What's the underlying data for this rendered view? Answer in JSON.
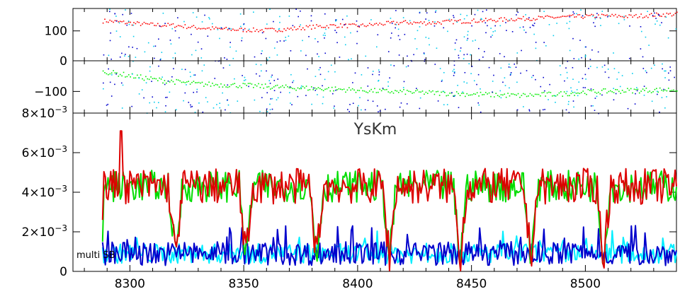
{
  "chart_data": [
    {
      "type": "scatter",
      "panel": "top",
      "ylim": [
        0,
        175
      ],
      "xlim": [
        8275,
        8540
      ],
      "yticks": [
        0,
        100
      ],
      "ytick_labels": [
        "0",
        "100"
      ],
      "series": [
        {
          "color": "#ff0000",
          "style": "dots",
          "x": [
            8290,
            8300,
            8310,
            8320,
            8330,
            8340,
            8350,
            8360,
            8370,
            8380,
            8390,
            8400,
            8410,
            8420,
            8430,
            8440,
            8450,
            8460,
            8470,
            8480,
            8490,
            8500,
            8510,
            8520,
            8530,
            8540
          ],
          "y": [
            135,
            128,
            122,
            120,
            112,
            108,
            105,
            104,
            108,
            115,
            120,
            118,
            125,
            130,
            128,
            132,
            135,
            138,
            142,
            145,
            148,
            150,
            152,
            150,
            155,
            158
          ]
        },
        {
          "color": "#00ccee",
          "style": "scattered-dots",
          "range": [
            0,
            175
          ]
        },
        {
          "color": "#0000cc",
          "style": "scattered-dots",
          "range": [
            0,
            175
          ]
        }
      ]
    },
    {
      "type": "scatter",
      "panel": "middle",
      "ylim": [
        -160,
        -15
      ],
      "xlim": [
        8275,
        8540
      ],
      "yticks": [
        -100
      ],
      "ytick_labels": [
        "−100"
      ],
      "series": [
        {
          "color": "#00ee00",
          "style": "dots",
          "x": [
            8290,
            8300,
            8310,
            8320,
            8330,
            8340,
            8350,
            8360,
            8370,
            8380,
            8390,
            8400,
            8410,
            8420,
            8430,
            8440,
            8450,
            8460,
            8470,
            8480,
            8490,
            8500,
            8510,
            8520,
            8530,
            8540
          ],
          "y": [
            -45,
            -55,
            -65,
            -72,
            -78,
            -80,
            -82,
            -85,
            -88,
            -90,
            -92,
            -95,
            -98,
            -100,
            -102,
            -104,
            -106,
            -108,
            -110,
            -108,
            -105,
            -100,
            -98,
            -96,
            -95,
            -93
          ]
        },
        {
          "color": "#00ccee",
          "style": "scattered-dots",
          "range": [
            -160,
            -20
          ]
        },
        {
          "color": "#0000cc",
          "style": "scattered-dots",
          "range": [
            -160,
            -20
          ]
        }
      ]
    },
    {
      "type": "line",
      "panel": "bottom",
      "title": "YsKm",
      "annotation": "multi SB",
      "ylim": [
        0,
        0.008
      ],
      "xlim": [
        8275,
        8540
      ],
      "yticks": [
        0,
        0.002,
        0.004,
        0.006,
        0.008
      ],
      "ytick_labels": [
        {
          "mant": "0",
          "exp": ""
        },
        {
          "mant": "2×10",
          "exp": "−3"
        },
        {
          "mant": "4×10",
          "exp": "−3"
        },
        {
          "mant": "6×10",
          "exp": "−3"
        },
        {
          "mant": "8×10",
          "exp": "−3"
        }
      ],
      "x_ticks": [
        8300,
        8350,
        8400,
        8450,
        8500
      ],
      "x_tick_labels": [
        "8300",
        "8350",
        "8400",
        "8450",
        "8500"
      ],
      "dips": [
        8320,
        8351,
        8382,
        8414,
        8445,
        8476,
        8508
      ],
      "series": [
        {
          "color": "#dd0000",
          "level": 0.0043,
          "spread": 0.0009,
          "start": 0.0026
        },
        {
          "color": "#00dd00",
          "level": 0.0043,
          "spread": 0.0008,
          "start": 0.0015
        },
        {
          "color": "#0000cc",
          "level": 0.0009,
          "spread": 0.0006
        },
        {
          "color": "#00eeff",
          "level": 0.0009,
          "spread": 0.0005
        }
      ]
    }
  ]
}
